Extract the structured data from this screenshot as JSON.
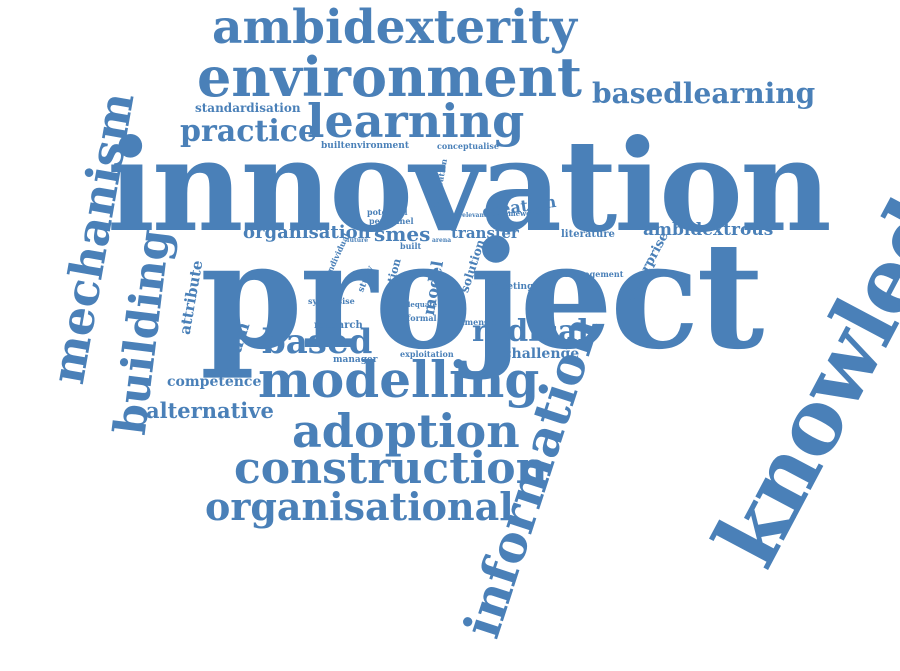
{
  "color": "#4a80b8",
  "background": "#ffffff",
  "words": {
    "ambidexterity": "ambidexterity",
    "environment": "environment",
    "basedlearning": "basedlearning",
    "learning": "learning",
    "practice": "practice",
    "standardisation": "standardisation",
    "innovation": "innovation",
    "project": "project",
    "based": "based",
    "modelling": "modelling",
    "radical": "radical",
    "challenge": "challenge",
    "adoption": "adoption",
    "construction": "construction",
    "organisational": "organisational",
    "alternative": "alternative",
    "competence": "competence",
    "organisation": "organisation",
    "smes": "smes",
    "transfer": "transfer",
    "ambidextrous": "ambidextrous",
    "literature": "literature",
    "management": "management",
    "meeting": "meeting",
    "research": "research",
    "informal": "informal",
    "dimension": "dimension",
    "manager": "manager",
    "exploitation": "exploitation",
    "synthesise": "synthesise",
    "adequate": "adequate",
    "builtenvironment": "builtenvironment",
    "conceptualise": "conceptualise",
    "potential": "potential",
    "personnel": "personnel",
    "built": "built",
    "relevant": "relevant",
    "framework": "framework",
    "future": "future",
    "arena": "arena",
    "mechanism": "mechanism",
    "building": "building",
    "knowledge": "knowledge",
    "information": "information",
    "team": "team",
    "attribute": "attribute",
    "creation": "creation",
    "enterprise": "enterprise",
    "model": "model",
    "solution": "solution",
    "operation": "operation",
    "study": "study",
    "exploration": "exploration",
    "individual": "individual"
  }
}
